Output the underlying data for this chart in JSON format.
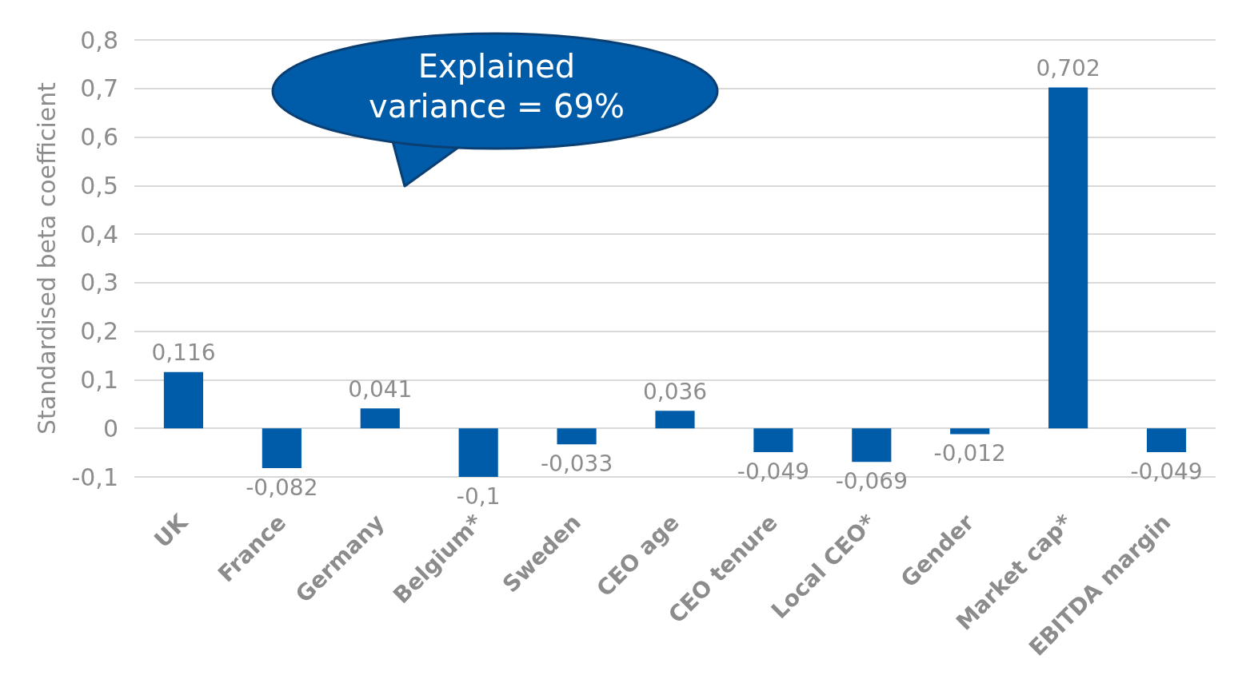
{
  "chart_data": {
    "type": "bar",
    "ylabel": "Standardised beta coefficient",
    "categories": [
      "UK",
      "France",
      "Germany",
      "Belgium*",
      "Sweden",
      "CEO age",
      "CEO tenure",
      "Local CEO*",
      "Gender",
      "Market cap*",
      "EBITDA margin"
    ],
    "values": [
      0.116,
      -0.082,
      0.041,
      -0.1,
      -0.033,
      0.036,
      -0.049,
      -0.069,
      -0.012,
      0.702,
      -0.049
    ],
    "value_labels": [
      "0,116",
      "-0,082",
      "0,041",
      "-0,1",
      "-0,033",
      "0,036",
      "-0,049",
      "-0,069",
      "-0,012",
      "0,702",
      "-0,049"
    ],
    "color": "#005ca9",
    "ylim": [
      -0.1,
      0.8
    ],
    "yticks": [
      {
        "value": -0.1,
        "label": "-0,1"
      },
      0,
      {
        "value": 0.1,
        "label": "0,1"
      },
      {
        "value": 0.2,
        "label": "0,2"
      },
      {
        "value": 0.3,
        "label": "0,3"
      },
      {
        "value": 0.4,
        "label": "0,4"
      },
      {
        "value": 0.5,
        "label": "0,5"
      },
      {
        "value": 0.6,
        "label": "0,6"
      },
      {
        "value": 0.7,
        "label": "0,7"
      },
      {
        "value": 0.8,
        "label": "0,8"
      }
    ],
    "grid": "y",
    "annotations": [
      "Explained variance = 69%"
    ]
  }
}
